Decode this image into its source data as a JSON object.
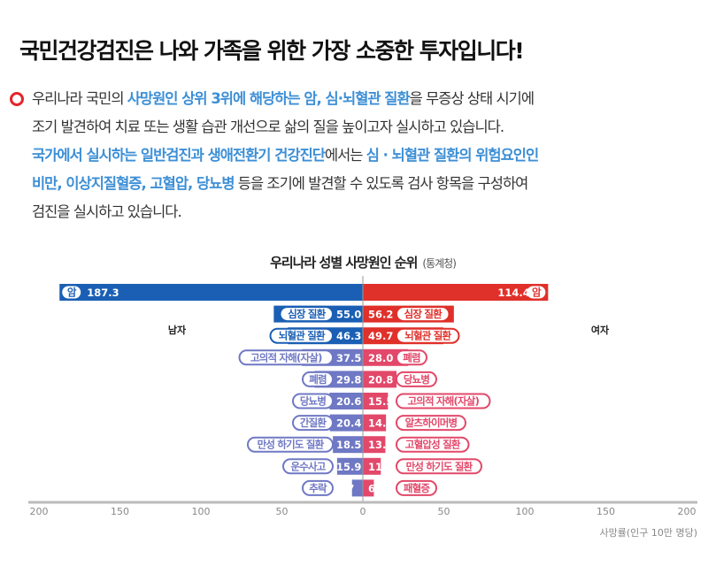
{
  "header": {
    "title": "국민건강검진은 나와 가족을 위한 가장 소중한 투자입니다!"
  },
  "description": {
    "bullet_icon": "circle-bullet-icon",
    "highlight_color": "#3d8fd6",
    "lines": [
      [
        {
          "text": "우리나라 국민의 ",
          "hl": false
        },
        {
          "text": "사망원인 상위 3위에 해당하는 암, 심·뇌혈관 질환",
          "hl": true
        },
        {
          "text": "을 무증상 상태 시기에",
          "hl": false
        }
      ],
      [
        {
          "text": "조기 발견하여 치료 또는 생활 습관 개선으로 삶의 질을 높이고자 실시하고 있습니다.",
          "hl": false
        }
      ],
      [
        {
          "text": "국가에서 실시하는 일반검진과 생애전환기 건강진단",
          "hl": true
        },
        {
          "text": "에서는 ",
          "hl": false
        },
        {
          "text": "심 · 뇌혈관 질환의 위험요인인",
          "hl": true
        }
      ],
      [
        {
          "text": "비만, 이상지질혈증, 고혈압, 당뇨병",
          "hl": true
        },
        {
          "text": " 등을 조기에 발견할 수 있도록 검사 항목을 구성하여",
          "hl": false
        }
      ],
      [
        {
          "text": "검진을 실시하고 있습니다.",
          "hl": false
        }
      ]
    ]
  },
  "chart_data": {
    "type": "bar",
    "orientation": "horizontal-butterfly",
    "title": "우리나라 성별 사망원인 순위",
    "source": "(통계청)",
    "xlabel": "사망률(인구 10만 명당)",
    "xlim": [
      -200,
      200
    ],
    "x_ticks": [
      200,
      150,
      100,
      50,
      0,
      50,
      100,
      150,
      200
    ],
    "grid": false,
    "series": [
      {
        "name": "남자",
        "side": "left",
        "colors": {
          "top": "#1a5fb4",
          "rest": "#6f78c4"
        },
        "categories": [
          "암",
          "심장 질환",
          "뇌혈관 질환",
          "고의적 자해(자살)",
          "폐렴",
          "당뇨병",
          "간질환",
          "만성 하기도 질환",
          "운수사고",
          "추락"
        ],
        "values": [
          187.3,
          55.0,
          46.3,
          37.5,
          29.8,
          20.6,
          20.4,
          18.5,
          15.9,
          6.7
        ]
      },
      {
        "name": "여자",
        "side": "right",
        "colors": {
          "top": "#e0302a",
          "rest": "#e2486a"
        },
        "categories": [
          "암",
          "심장 질환",
          "뇌혈관 질환",
          "폐렴",
          "당뇨병",
          "고의적 자해(자살)",
          "알츠하이머병",
          "고혈압성 질환",
          "만성 하기도 질환",
          "패혈증"
        ],
        "values": [
          114.4,
          56.2,
          49.7,
          28.0,
          20.8,
          15.5,
          14.3,
          13.9,
          11.1,
          6.8
        ]
      }
    ]
  }
}
